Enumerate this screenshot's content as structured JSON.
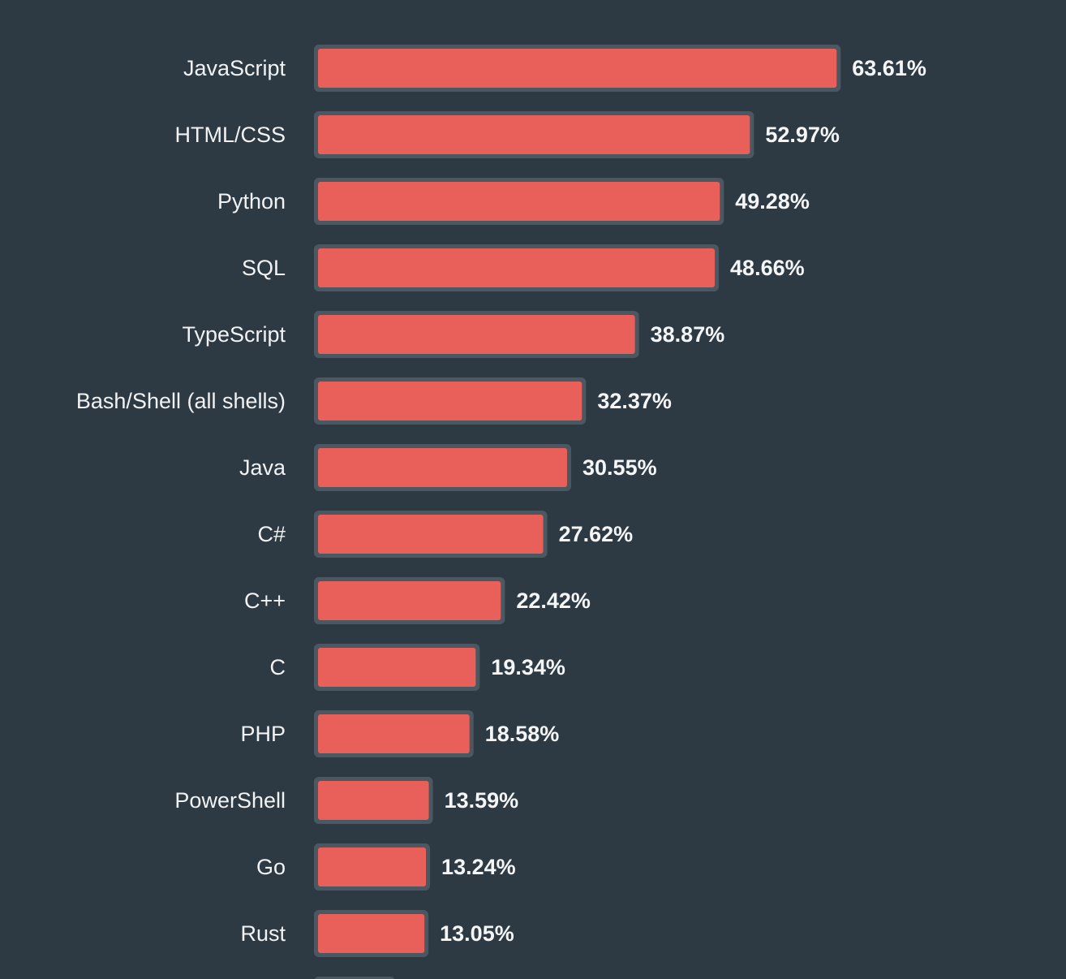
{
  "colors": {
    "background": "#2d3a43",
    "bar_fill": "#e9605a",
    "bar_outline": "#4b5861",
    "label_text": "#f1f2f3"
  },
  "chart_data": {
    "type": "bar",
    "orientation": "horizontal",
    "title": "",
    "xlabel": "",
    "ylabel": "",
    "xlim": [
      0,
      100
    ],
    "grid": false,
    "legend": "none",
    "categories": [
      "JavaScript",
      "HTML/CSS",
      "Python",
      "SQL",
      "TypeScript",
      "Bash/Shell (all shells)",
      "Java",
      "C#",
      "C++",
      "C",
      "PHP",
      "PowerShell",
      "Go",
      "Rust"
    ],
    "values": [
      63.61,
      52.97,
      49.28,
      48.66,
      38.87,
      32.37,
      30.55,
      27.62,
      22.42,
      19.34,
      18.58,
      13.59,
      13.24,
      13.05
    ],
    "value_labels": [
      "63.61%",
      "52.97%",
      "49.28%",
      "48.66%",
      "38.87%",
      "32.37%",
      "30.55%",
      "27.62%",
      "22.42%",
      "19.34%",
      "18.58%",
      "13.59%",
      "13.24%",
      "13.05%"
    ],
    "truncated_next_bar_visible": true
  }
}
